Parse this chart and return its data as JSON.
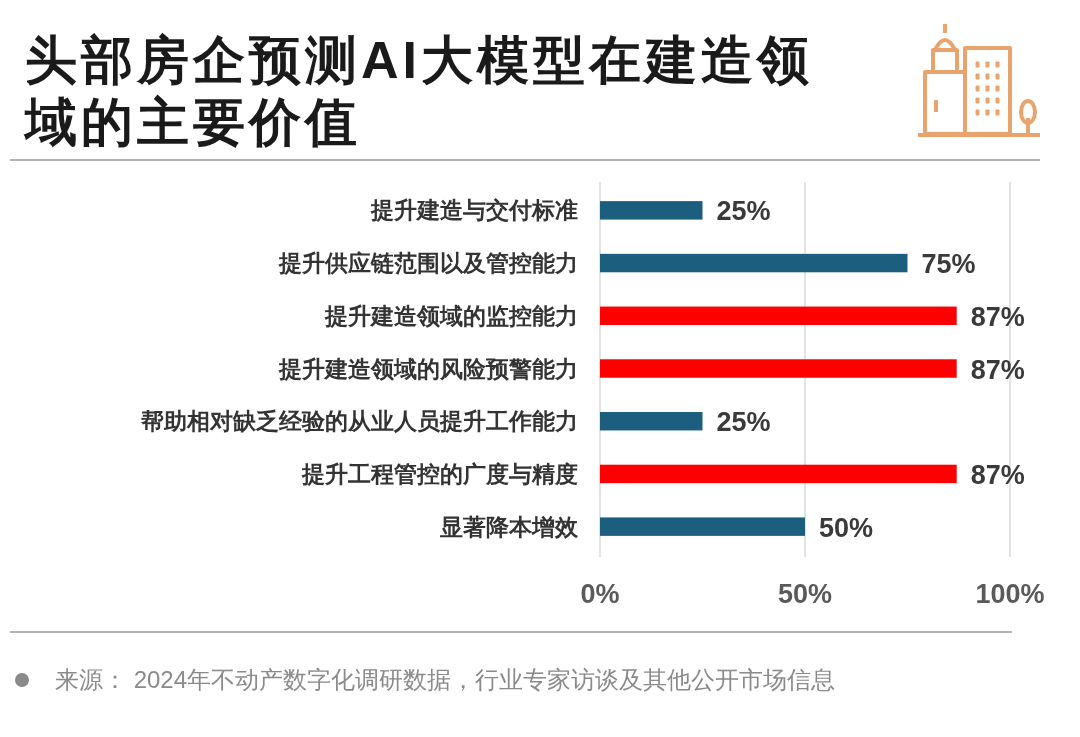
{
  "chart_data": {
    "type": "bar",
    "orientation": "horizontal",
    "title": "头部房企预测AI大模型在建造领域的主要价值",
    "categories": [
      "提升建造与交付标准",
      "提升供应链范围以及管控能力",
      "提升建造领域的监控能力",
      "提升建造领域的风险预警能力",
      "帮助相对缺乏经验的从业人员提升工作能力",
      "提升工程管控的广度与精度",
      "显著降本增效"
    ],
    "values": [
      25,
      75,
      87,
      87,
      25,
      87,
      50
    ],
    "colors": [
      "#1b5e7e",
      "#1b5e7e",
      "#ff0000",
      "#ff0000",
      "#1b5e7e",
      "#ff0000",
      "#1b5e7e"
    ],
    "value_labels": [
      "25%",
      "75%",
      "87%",
      "87%",
      "25%",
      "87%",
      "50%"
    ],
    "xlim": [
      0,
      100
    ],
    "xticks": [
      {
        "value": 0,
        "label": "0%"
      },
      {
        "value": 50,
        "label": "50%"
      },
      {
        "value": 100,
        "label": "100%"
      }
    ],
    "grid": "x",
    "annotations": [
      "来源： 2024年不动产数字化调研数据，行业专家访谈及其他公开市场信息"
    ]
  }
}
